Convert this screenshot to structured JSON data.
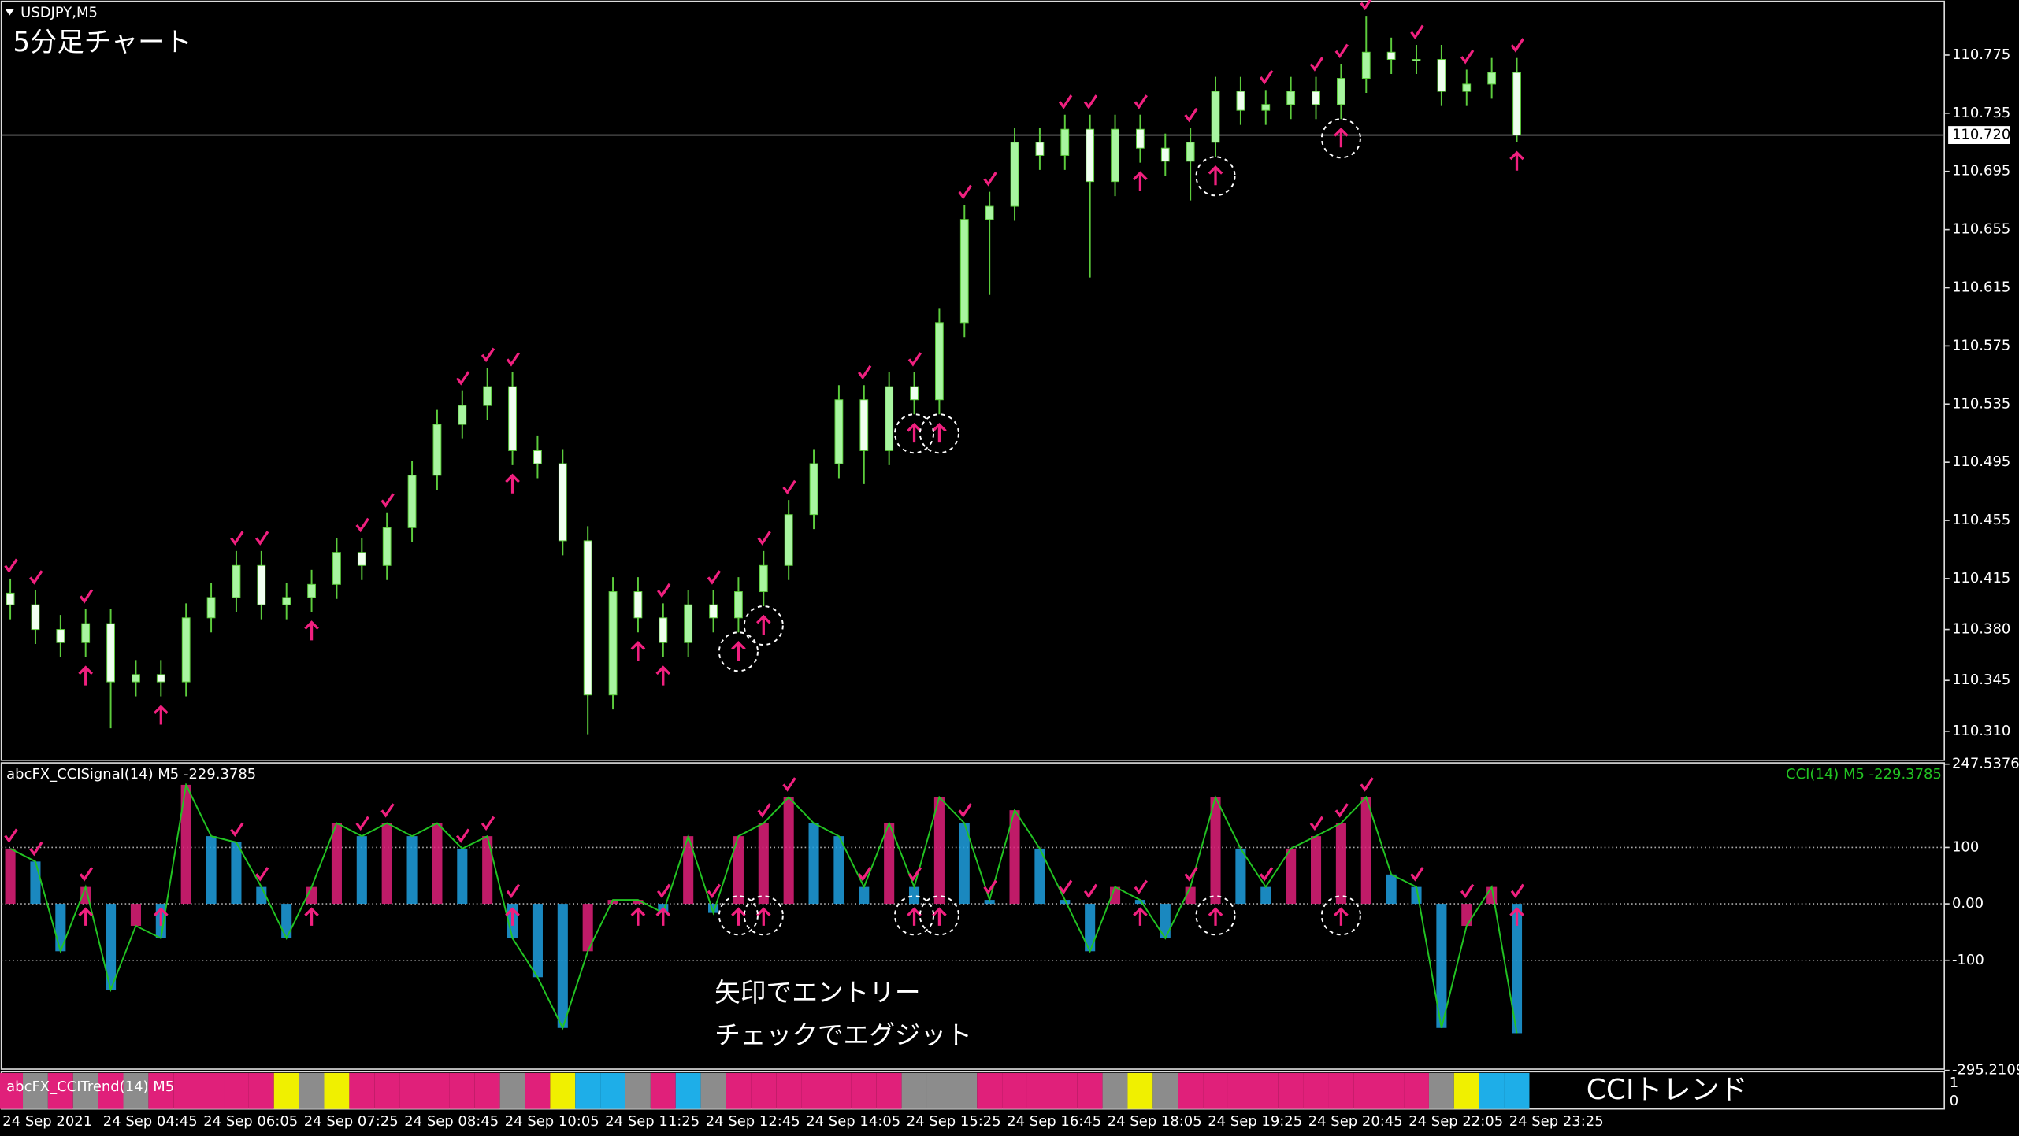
{
  "chart_data": [
    {
      "type": "candlestick",
      "title": "USDJPY,M5",
      "annotation": "5分足チャート",
      "categories": [
        "24 Sep 2021",
        null,
        null,
        null,
        "24 Sep 04:45",
        null,
        null,
        null,
        "24 Sep 06:05",
        null,
        null,
        null,
        "24 Sep 07:25",
        null,
        null,
        null,
        "24 Sep 08:45",
        null,
        null,
        null,
        "24 Sep 10:05",
        null,
        null,
        null,
        "24 Sep 11:25",
        null,
        null,
        null,
        "24 Sep 12:45",
        null,
        null,
        null,
        "24 Sep 14:05",
        null,
        null,
        null,
        "24 Sep 15:25",
        null,
        null,
        null,
        "24 Sep 16:45",
        null,
        null,
        null,
        "24 Sep 18:05",
        null,
        null,
        null,
        "24 Sep 19:25",
        null,
        null,
        null,
        "24 Sep 20:45",
        null,
        null,
        null,
        "24 Sep 22:05",
        null,
        null,
        null,
        "24 Sep 23:25"
      ],
      "open": [
        110.405,
        110.397,
        110.38,
        110.371,
        110.384,
        110.344,
        110.349,
        110.344,
        110.388,
        110.402,
        110.424,
        110.397,
        110.402,
        110.411,
        110.433,
        110.424,
        110.45,
        110.486,
        110.521,
        110.534,
        110.547,
        110.503,
        110.494,
        110.441,
        110.335,
        110.406,
        110.388,
        110.371,
        110.397,
        110.388,
        110.406,
        110.424,
        110.459,
        110.494,
        110.538,
        110.503,
        110.547,
        110.538,
        110.591,
        110.662,
        110.671,
        110.715,
        110.706,
        110.724,
        110.688,
        110.724,
        110.711,
        110.702,
        110.715,
        110.75,
        110.737,
        110.741,
        110.75,
        110.741,
        110.759,
        110.777,
        110.772,
        110.772,
        110.75,
        110.755,
        110.763
      ],
      "high": [
        110.415,
        110.407,
        110.39,
        110.394,
        110.394,
        110.359,
        110.359,
        110.398,
        110.412,
        110.434,
        110.434,
        110.412,
        110.421,
        110.443,
        110.443,
        110.46,
        110.496,
        110.531,
        110.544,
        110.56,
        110.557,
        110.513,
        110.504,
        110.451,
        110.416,
        110.416,
        110.398,
        110.407,
        110.407,
        110.416,
        110.434,
        110.469,
        110.504,
        110.548,
        110.548,
        110.557,
        110.557,
        110.601,
        110.672,
        110.681,
        110.725,
        110.725,
        110.734,
        110.734,
        110.734,
        110.734,
        110.721,
        110.725,
        110.76,
        110.76,
        110.751,
        110.76,
        110.76,
        110.769,
        110.802,
        110.787,
        110.782,
        110.782,
        110.765,
        110.773,
        110.773
      ],
      "low": [
        110.387,
        110.37,
        110.361,
        110.361,
        110.312,
        110.334,
        110.334,
        110.334,
        110.378,
        110.392,
        110.387,
        110.387,
        110.392,
        110.401,
        110.414,
        110.414,
        110.44,
        110.476,
        110.511,
        110.524,
        110.493,
        110.484,
        110.431,
        110.308,
        110.325,
        110.378,
        110.361,
        110.361,
        110.378,
        110.378,
        110.396,
        110.414,
        110.449,
        110.484,
        110.48,
        110.493,
        110.528,
        110.528,
        110.581,
        110.61,
        110.661,
        110.696,
        110.696,
        110.622,
        110.678,
        110.701,
        110.692,
        110.675,
        110.705,
        110.727,
        110.727,
        110.731,
        110.731,
        110.731,
        110.749,
        110.762,
        110.762,
        110.74,
        110.74,
        110.745,
        110.715
      ],
      "close": [
        110.397,
        110.38,
        110.371,
        110.384,
        110.344,
        110.349,
        110.344,
        110.388,
        110.402,
        110.424,
        110.397,
        110.402,
        110.411,
        110.433,
        110.424,
        110.45,
        110.486,
        110.521,
        110.534,
        110.547,
        110.503,
        110.494,
        110.441,
        110.335,
        110.406,
        110.388,
        110.371,
        110.397,
        110.388,
        110.406,
        110.424,
        110.459,
        110.494,
        110.538,
        110.503,
        110.547,
        110.538,
        110.591,
        110.662,
        110.671,
        110.715,
        110.706,
        110.724,
        110.688,
        110.724,
        110.711,
        110.702,
        110.715,
        110.75,
        110.737,
        110.741,
        110.75,
        110.741,
        110.759,
        110.777,
        110.772,
        110.772,
        110.75,
        110.755,
        110.763,
        110.72
      ],
      "ylim": [
        110.29,
        110.812
      ],
      "yticks": [
        110.775,
        110.735,
        110.695,
        110.655,
        110.615,
        110.575,
        110.535,
        110.495,
        110.455,
        110.415,
        {
          "value": 110.38,
          "label": "110.380"
        },
        110.345,
        {
          "value": 110.31,
          "label": "110.310"
        }
      ],
      "current_price": {
        "value": 110.72,
        "label": "110.720"
      },
      "up_color": "#a8f5a0",
      "down_color": "#f0fff0",
      "wick_color": "#5ccc3c",
      "signal_color": "#f0207f",
      "entry_bars": [
        3,
        6,
        12,
        20,
        25,
        26,
        29,
        30,
        36,
        37,
        45,
        48,
        53,
        60
      ],
      "exit_bars": [
        0,
        1,
        3,
        9,
        10,
        14,
        15,
        18,
        19,
        20,
        26,
        28,
        30,
        31,
        34,
        36,
        38,
        39,
        42,
        43,
        45,
        47,
        50,
        52,
        53,
        54,
        56,
        58,
        60
      ],
      "circled_bars": [
        29,
        30,
        36,
        37,
        48,
        53
      ]
    },
    {
      "type": "cci",
      "title": "abcFX_CCISignal(14) M5 -229.3785",
      "legend": "CCI(14) M5 -229.3785",
      "values": [
        98,
        75,
        -84,
        30,
        -152,
        -39,
        -61,
        211,
        120,
        109,
        30,
        -61,
        30,
        143,
        120,
        143,
        120,
        143,
        98,
        120,
        -61,
        -130,
        -220,
        -84,
        7,
        7,
        -16,
        120,
        -16,
        120,
        143,
        189,
        143,
        120,
        30,
        143,
        30,
        189,
        143,
        7,
        166,
        98,
        7,
        -84,
        30,
        7,
        -61,
        30,
        189,
        98,
        30,
        98,
        120,
        143,
        189,
        52,
        30,
        -220,
        -39,
        30,
        -229.3785
      ],
      "ylim": [
        -295.2109,
        247.5376
      ],
      "yticks": [
        247.5376,
        100,
        {
          "value": 0,
          "label": "0.00"
        },
        -100,
        -295.2109
      ],
      "grid_levels": [
        100,
        0,
        -100
      ],
      "line_color": "#22c322",
      "rising_color": "#e0207a",
      "falling_color": "#1ea0e0",
      "annotations": [
        "矢印でエントリー",
        "チェックでエグジット"
      ]
    },
    {
      "type": "strip",
      "title": "abcFX_CCITrend(14) M5",
      "label": "CCIトレンド",
      "values": [
        1,
        1,
        1,
        1,
        1,
        1,
        1,
        1,
        1,
        1,
        1,
        1,
        1,
        1,
        1,
        1,
        1,
        1,
        1,
        1,
        1,
        1,
        1,
        1,
        1,
        1,
        1,
        1,
        1,
        1,
        1,
        1,
        1,
        1,
        1,
        1,
        1,
        1,
        1,
        1,
        1,
        1,
        1,
        1,
        1,
        1,
        1,
        1,
        1,
        1,
        1,
        1,
        1,
        1,
        1,
        1,
        1,
        1,
        1,
        1,
        1
      ],
      "colors": [
        "#e0207a",
        "#8c8c8c",
        "#e0207a",
        "#8c8c8c",
        "#e0207a",
        "#8c8c8c",
        "#e0207a",
        "#e0207a",
        "#e0207a",
        "#e0207a",
        "#e0207a",
        "#f0f000",
        "#8c8c8c",
        "#f0f000",
        "#e0207a",
        "#e0207a",
        "#e0207a",
        "#e0207a",
        "#e0207a",
        "#e0207a",
        "#8c8c8c",
        "#e0207a",
        "#f0f000",
        "#1eaee8",
        "#1eaee8",
        "#8c8c8c",
        "#e0207a",
        "#1eaee8",
        "#8c8c8c",
        "#e0207a",
        "#e0207a",
        "#e0207a",
        "#e0207a",
        "#e0207a",
        "#e0207a",
        "#e0207a",
        "#8c8c8c",
        "#8c8c8c",
        "#8c8c8c",
        "#e0207a",
        "#e0207a",
        "#e0207a",
        "#e0207a",
        "#e0207a",
        "#8c8c8c",
        "#f0f000",
        "#8c8c8c",
        "#e0207a",
        "#e0207a",
        "#e0207a",
        "#e0207a",
        "#e0207a",
        "#e0207a",
        "#e0207a",
        "#e0207a",
        "#e0207a",
        "#e0207a",
        "#8c8c8c",
        "#f0f000",
        "#1eaee8",
        "#1eaee8"
      ],
      "ylim": [
        0,
        1
      ],
      "yticks": [
        1,
        0
      ]
    }
  ]
}
